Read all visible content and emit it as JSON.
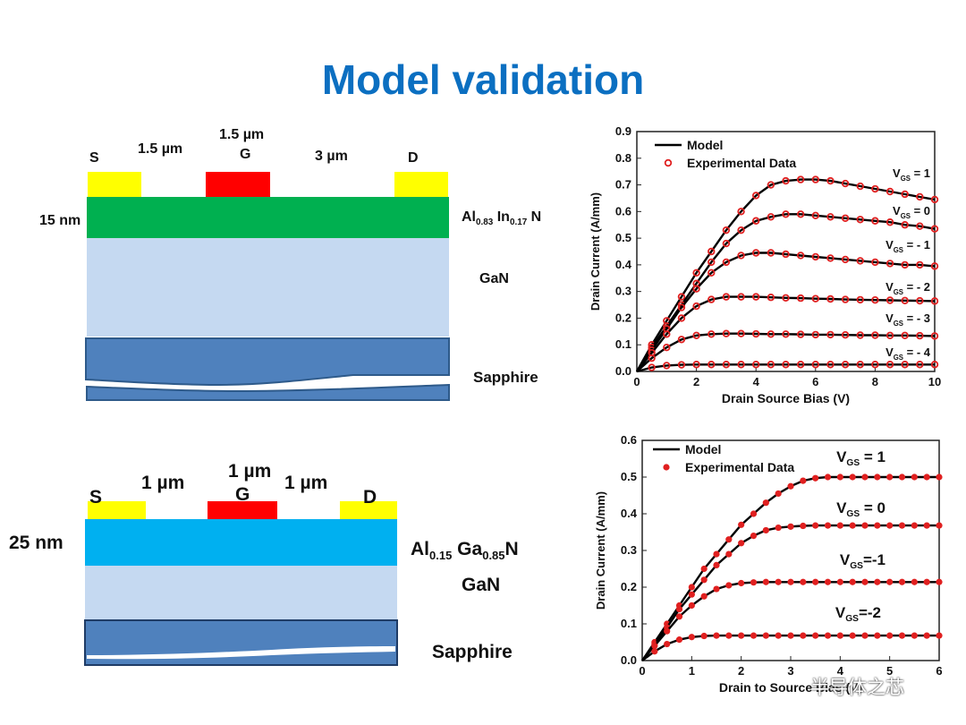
{
  "title": "Model validation",
  "top_structure": {
    "source": "S",
    "gate": "G",
    "drain": "D",
    "gap_left": "1.5 µm",
    "gate_length": "1.5 µm",
    "gap_right": "3 µm",
    "barrier_thickness": "15 nm",
    "barrier_material": {
      "base1": "Al",
      "sub1": "0.83",
      "base2": " In",
      "sub2": "0.17",
      "base3": " N"
    },
    "channel": "GaN",
    "substrate": "Sapphire",
    "colors": {
      "contact": "#ffff00",
      "gate": "#ff0000",
      "barrier": "#00b050",
      "gan": "#c5d9f1",
      "sapphire": "#4f81bd"
    }
  },
  "bottom_structure": {
    "source": "S",
    "gate": "G",
    "drain": "D",
    "gap_left": "1 µm",
    "gate_length": "1 µm",
    "gap_right": "1 µm",
    "barrier_thickness": "25 nm",
    "barrier_material": {
      "base1": "Al",
      "sub1": "0.15",
      "base2": " Ga",
      "sub2": "0.85",
      "base3": "N"
    },
    "channel": "GaN",
    "substrate": "Sapphire",
    "colors": {
      "contact": "#ffff00",
      "gate": "#ff0000",
      "barrier": "#00b0f0",
      "gan": "#c5d9f1",
      "sapphire": "#4f81bd"
    }
  },
  "watermark": "半导体之芯",
  "chart_data": [
    {
      "type": "line",
      "xlabel": "Drain Source Bias (V)",
      "ylabel": "Drain Current (A/mm)",
      "xlim": [
        0,
        10
      ],
      "ylim": [
        0,
        0.9
      ],
      "xticks": [
        "0",
        "2",
        "4",
        "6",
        "8",
        "10"
      ],
      "yticks": [
        "0.0",
        "0.1",
        "0.2",
        "0.3",
        "0.4",
        "0.5",
        "0.6",
        "0.7",
        "0.8",
        "0.9"
      ],
      "legend": [
        "Model",
        "Experimental Data"
      ],
      "legend_position": "top-left",
      "marker_style": "hollow",
      "x": [
        0,
        0.5,
        1,
        1.5,
        2,
        2.5,
        3,
        3.5,
        4,
        4.5,
        5,
        5.5,
        6,
        6.5,
        7,
        7.5,
        8,
        8.5,
        9,
        9.5,
        10
      ],
      "series": [
        {
          "name": "VGS = 1",
          "values": [
            0,
            0.1,
            0.19,
            0.28,
            0.37,
            0.45,
            0.53,
            0.6,
            0.66,
            0.7,
            0.715,
            0.72,
            0.72,
            0.715,
            0.705,
            0.695,
            0.685,
            0.675,
            0.665,
            0.655,
            0.645
          ]
        },
        {
          "name": "VGS = 0",
          "values": [
            0,
            0.09,
            0.17,
            0.25,
            0.33,
            0.41,
            0.48,
            0.53,
            0.565,
            0.58,
            0.59,
            0.59,
            0.585,
            0.58,
            0.575,
            0.57,
            0.565,
            0.56,
            0.55,
            0.545,
            0.535
          ]
        },
        {
          "name": "VGS = - 1",
          "values": [
            0,
            0.08,
            0.16,
            0.24,
            0.31,
            0.37,
            0.41,
            0.435,
            0.445,
            0.445,
            0.44,
            0.435,
            0.43,
            0.425,
            0.42,
            0.415,
            0.41,
            0.405,
            0.4,
            0.4,
            0.395
          ]
        },
        {
          "name": "VGS = - 2",
          "values": [
            0,
            0.07,
            0.14,
            0.2,
            0.245,
            0.27,
            0.28,
            0.28,
            0.28,
            0.278,
            0.276,
            0.275,
            0.273,
            0.272,
            0.27,
            0.269,
            0.268,
            0.267,
            0.266,
            0.265,
            0.264
          ]
        },
        {
          "name": "VGS = - 3",
          "values": [
            0,
            0.05,
            0.09,
            0.12,
            0.135,
            0.14,
            0.142,
            0.142,
            0.141,
            0.14,
            0.14,
            0.139,
            0.138,
            0.138,
            0.137,
            0.136,
            0.136,
            0.135,
            0.135,
            0.134,
            0.133
          ]
        },
        {
          "name": "VGS = - 4",
          "values": [
            0,
            0.015,
            0.022,
            0.025,
            0.026,
            0.026,
            0.026,
            0.026,
            0.026,
            0.026,
            0.026,
            0.026,
            0.026,
            0.026,
            0.026,
            0.026,
            0.026,
            0.026,
            0.026,
            0.026,
            0.026
          ]
        }
      ]
    },
    {
      "type": "line",
      "xlabel": "Drain to Source Bias (V)",
      "ylabel": "Drain Current (A/mm)",
      "xlim": [
        0,
        6
      ],
      "ylim": [
        0,
        0.6
      ],
      "xticks": [
        "0",
        "1",
        "2",
        "3",
        "4",
        "5",
        "6"
      ],
      "yticks": [
        "0.0",
        "0.1",
        "0.2",
        "0.3",
        "0.4",
        "0.5",
        "0.6"
      ],
      "legend": [
        "Model",
        "Experimental Data"
      ],
      "legend_position": "top-left",
      "marker_style": "filled",
      "x": [
        0,
        0.25,
        0.5,
        0.75,
        1,
        1.25,
        1.5,
        1.75,
        2,
        2.25,
        2.5,
        2.75,
        3,
        3.25,
        3.5,
        3.75,
        4,
        4.25,
        4.5,
        4.75,
        5,
        5.25,
        5.5,
        5.75,
        6
      ],
      "series": [
        {
          "name": "VGS = 1",
          "values": [
            0,
            0.05,
            0.1,
            0.15,
            0.2,
            0.25,
            0.29,
            0.33,
            0.37,
            0.4,
            0.43,
            0.455,
            0.475,
            0.49,
            0.497,
            0.5,
            0.5,
            0.5,
            0.5,
            0.5,
            0.5,
            0.5,
            0.5,
            0.5,
            0.5
          ]
        },
        {
          "name": "VGS = 0",
          "values": [
            0,
            0.045,
            0.09,
            0.14,
            0.18,
            0.22,
            0.26,
            0.29,
            0.32,
            0.34,
            0.355,
            0.362,
            0.365,
            0.367,
            0.368,
            0.368,
            0.368,
            0.368,
            0.368,
            0.368,
            0.368,
            0.368,
            0.368,
            0.368,
            0.368
          ]
        },
        {
          "name": "VGS=-1",
          "values": [
            0,
            0.04,
            0.08,
            0.12,
            0.15,
            0.175,
            0.195,
            0.205,
            0.211,
            0.213,
            0.214,
            0.214,
            0.214,
            0.214,
            0.214,
            0.214,
            0.214,
            0.214,
            0.214,
            0.214,
            0.214,
            0.214,
            0.214,
            0.214,
            0.214
          ]
        },
        {
          "name": "VGS=-2",
          "values": [
            0,
            0.025,
            0.045,
            0.057,
            0.064,
            0.067,
            0.068,
            0.068,
            0.068,
            0.068,
            0.068,
            0.068,
            0.068,
            0.068,
            0.068,
            0.068,
            0.068,
            0.068,
            0.068,
            0.068,
            0.068,
            0.068,
            0.068,
            0.068,
            0.068
          ]
        }
      ]
    }
  ]
}
